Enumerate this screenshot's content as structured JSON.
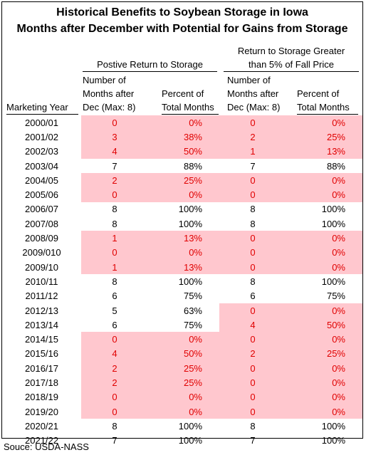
{
  "title": {
    "line1": "Historical Benefits to Soybean Storage in Iowa",
    "line2": "Months after December with Potential for Gains from Storage"
  },
  "headers": {
    "group1": "Postive Return to Storage",
    "group2_line1": "Return to Storage Greater",
    "group2_line2": "than 5% of Fall Price",
    "months_line1": "Number of",
    "months_line2": "Months after",
    "months_line3": "Dec (Max: 8)",
    "pct_line1": "Percent of",
    "pct_line2": "Total Months",
    "year": "Marketing Year"
  },
  "rows": [
    {
      "year": "2000/01",
      "m1": "0",
      "p1": "0%",
      "m2": "0",
      "p2": "0%",
      "h1": true,
      "h2": true
    },
    {
      "year": "2001/02",
      "m1": "3",
      "p1": "38%",
      "m2": "2",
      "p2": "25%",
      "h1": true,
      "h2": true
    },
    {
      "year": "2002/03",
      "m1": "4",
      "p1": "50%",
      "m2": "1",
      "p2": "13%",
      "h1": true,
      "h2": true
    },
    {
      "year": "2003/04",
      "m1": "7",
      "p1": "88%",
      "m2": "7",
      "p2": "88%",
      "h1": false,
      "h2": false
    },
    {
      "year": "2004/05",
      "m1": "2",
      "p1": "25%",
      "m2": "0",
      "p2": "0%",
      "h1": true,
      "h2": true
    },
    {
      "year": "2005/06",
      "m1": "0",
      "p1": "0%",
      "m2": "0",
      "p2": "0%",
      "h1": true,
      "h2": true
    },
    {
      "year": "2006/07",
      "m1": "8",
      "p1": "100%",
      "m2": "8",
      "p2": "100%",
      "h1": false,
      "h2": false
    },
    {
      "year": "2007/08",
      "m1": "8",
      "p1": "100%",
      "m2": "8",
      "p2": "100%",
      "h1": false,
      "h2": false
    },
    {
      "year": "2008/09",
      "m1": "1",
      "p1": "13%",
      "m2": "0",
      "p2": "0%",
      "h1": true,
      "h2": true
    },
    {
      "year": "2009/010",
      "m1": "0",
      "p1": "0%",
      "m2": "0",
      "p2": "0%",
      "h1": true,
      "h2": true
    },
    {
      "year": "2009/10",
      "m1": "1",
      "p1": "13%",
      "m2": "0",
      "p2": "0%",
      "h1": true,
      "h2": true
    },
    {
      "year": "2010/11",
      "m1": "8",
      "p1": "100%",
      "m2": "8",
      "p2": "100%",
      "h1": false,
      "h2": false
    },
    {
      "year": "2011/12",
      "m1": "6",
      "p1": "75%",
      "m2": "6",
      "p2": "75%",
      "h1": false,
      "h2": false
    },
    {
      "year": "2012/13",
      "m1": "5",
      "p1": "63%",
      "m2": "0",
      "p2": "0%",
      "h1": false,
      "h2": true
    },
    {
      "year": "2013/14",
      "m1": "6",
      "p1": "75%",
      "m2": "4",
      "p2": "50%",
      "h1": false,
      "h2": true
    },
    {
      "year": "2014/15",
      "m1": "0",
      "p1": "0%",
      "m2": "0",
      "p2": "0%",
      "h1": true,
      "h2": true
    },
    {
      "year": "2015/16",
      "m1": "4",
      "p1": "50%",
      "m2": "2",
      "p2": "25%",
      "h1": true,
      "h2": true
    },
    {
      "year": "2016/17",
      "m1": "2",
      "p1": "25%",
      "m2": "0",
      "p2": "0%",
      "h1": true,
      "h2": true
    },
    {
      "year": "2017/18",
      "m1": "2",
      "p1": "25%",
      "m2": "0",
      "p2": "0%",
      "h1": true,
      "h2": true
    },
    {
      "year": "2018/19",
      "m1": "0",
      "p1": "0%",
      "m2": "0",
      "p2": "0%",
      "h1": true,
      "h2": true
    },
    {
      "year": "2019/20",
      "m1": "0",
      "p1": "0%",
      "m2": "0",
      "p2": "0%",
      "h1": true,
      "h2": true
    },
    {
      "year": "2020/21",
      "m1": "8",
      "p1": "100%",
      "m2": "8",
      "p2": "100%",
      "h1": false,
      "h2": false
    },
    {
      "year": "2021/22",
      "m1": "7",
      "p1": "100%",
      "m2": "7",
      "p2": "100%",
      "h1": false,
      "h2": false
    }
  ],
  "source": "Souce: USDA-NASS",
  "colors": {
    "highlight_bg": "#ffc7ce",
    "highlight_text": "#e00000"
  }
}
